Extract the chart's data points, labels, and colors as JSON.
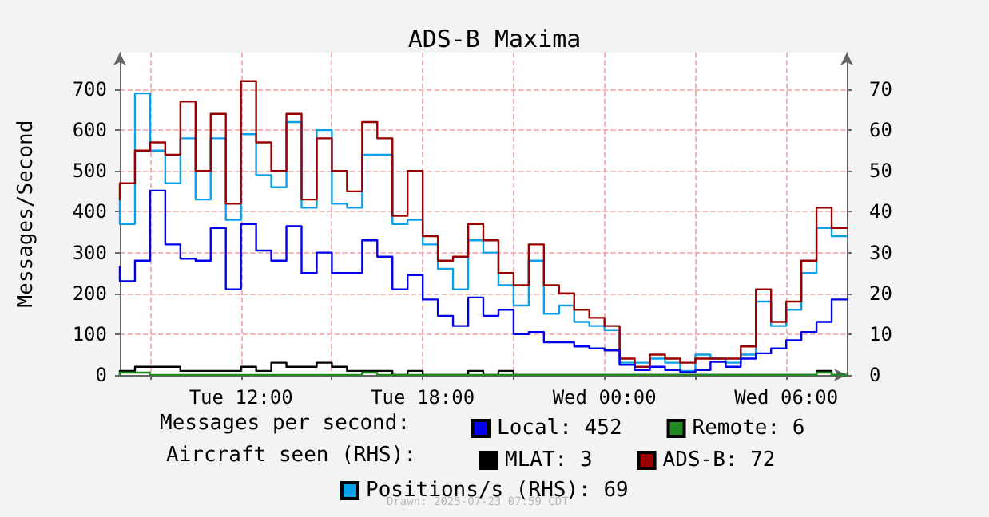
{
  "chart_data": {
    "type": "step",
    "title": "ADS-B Maxima",
    "ylabel": "Messages/Second",
    "annotations": [
      "Messages per second:",
      "Aircraft seen (RHS):",
      "Drawn: 2025-07-23 07:59 CDT"
    ],
    "x": [
      "2025-07-22T08:00",
      "2025-07-22T08:30",
      "2025-07-22T09:00",
      "2025-07-22T09:30",
      "2025-07-22T10:00",
      "2025-07-22T10:30",
      "2025-07-22T11:00",
      "2025-07-22T11:30",
      "2025-07-22T12:00",
      "2025-07-22T12:30",
      "2025-07-22T13:00",
      "2025-07-22T13:30",
      "2025-07-22T14:00",
      "2025-07-22T14:30",
      "2025-07-22T15:00",
      "2025-07-22T15:30",
      "2025-07-22T16:00",
      "2025-07-22T16:30",
      "2025-07-22T17:00",
      "2025-07-22T17:30",
      "2025-07-22T18:00",
      "2025-07-22T18:30",
      "2025-07-22T19:00",
      "2025-07-22T19:30",
      "2025-07-22T20:00",
      "2025-07-22T20:30",
      "2025-07-22T21:00",
      "2025-07-22T21:30",
      "2025-07-22T22:00",
      "2025-07-22T22:30",
      "2025-07-22T23:00",
      "2025-07-22T23:30",
      "2025-07-23T00:00",
      "2025-07-23T00:30",
      "2025-07-23T01:00",
      "2025-07-23T01:30",
      "2025-07-23T02:00",
      "2025-07-23T02:30",
      "2025-07-23T03:00",
      "2025-07-23T03:30",
      "2025-07-23T04:00",
      "2025-07-23T04:30",
      "2025-07-23T05:00",
      "2025-07-23T05:30",
      "2025-07-23T06:00",
      "2025-07-23T06:30",
      "2025-07-23T07:00",
      "2025-07-23T07:30",
      "2025-07-23T08:00"
    ],
    "xlim": [
      "2025-07-22T08:00",
      "2025-07-23T08:00"
    ],
    "xticks": [
      {
        "value": "2025-07-22T09:00",
        "label": null
      },
      {
        "value": "2025-07-22T12:00",
        "label": "Tue 12:00"
      },
      {
        "value": "2025-07-22T15:00",
        "label": null
      },
      {
        "value": "2025-07-22T18:00",
        "label": "Tue 18:00"
      },
      {
        "value": "2025-07-22T21:00",
        "label": null
      },
      {
        "value": "2025-07-23T00:00",
        "label": "Wed 00:00"
      },
      {
        "value": "2025-07-23T03:00",
        "label": null
      },
      {
        "value": "2025-07-23T06:00",
        "label": "Wed 06:00"
      }
    ],
    "ylim": [
      0,
      790
    ],
    "yticks": [
      0,
      100,
      200,
      300,
      400,
      500,
      600,
      700
    ],
    "y2lim": [
      0,
      79
    ],
    "y2ticks": [
      0,
      10,
      20,
      30,
      40,
      50,
      60,
      70
    ],
    "series": [
      {
        "name": "Local: 452",
        "color": "#0000ee",
        "values": [
          265,
          230,
          280,
          452,
          320,
          285,
          280,
          360,
          210,
          370,
          305,
          280,
          365,
          250,
          300,
          250,
          250,
          330,
          290,
          210,
          245,
          185,
          145,
          120,
          190,
          145,
          160,
          100,
          105,
          80,
          80,
          70,
          65,
          60,
          25,
          12,
          20,
          12,
          7,
          12,
          32,
          20,
          40,
          53,
          65,
          85,
          105,
          130,
          185
        ]
      },
      {
        "name": "Remote: 6",
        "color": "#228822",
        "values": [
          0,
          6,
          6,
          0,
          0,
          0,
          0,
          0,
          0,
          0,
          0,
          0,
          0,
          0,
          0,
          0,
          0,
          6,
          0,
          0,
          0,
          0,
          0,
          0,
          0,
          0,
          0,
          0,
          0,
          0,
          0,
          0,
          0,
          0,
          0,
          0,
          0,
          0,
          0,
          0,
          0,
          0,
          0,
          0,
          0,
          0,
          0,
          6,
          0
        ]
      },
      {
        "name": "MLAT: 3",
        "color": "#000000",
        "axis": "y2",
        "values": [
          0,
          1,
          2,
          2,
          2,
          1,
          1,
          1,
          1,
          2,
          1,
          3,
          2,
          2,
          3,
          2,
          1,
          1,
          1,
          0,
          1,
          0,
          0,
          0,
          1,
          0,
          1,
          0,
          0,
          0,
          0,
          0,
          0,
          0,
          0,
          0,
          0,
          0,
          0,
          0,
          0,
          0,
          0,
          0,
          0,
          0,
          0,
          1,
          0
        ]
      },
      {
        "name": "ADS-B: 72",
        "color": "#990000",
        "axis": "y2",
        "values": [
          43,
          47,
          55,
          57,
          54,
          67,
          50,
          64,
          42,
          72,
          57,
          50,
          64,
          43,
          58,
          50,
          45,
          62,
          58,
          39,
          50,
          34,
          28,
          29,
          37,
          33,
          25,
          22,
          32,
          22,
          20,
          16,
          14,
          12,
          4,
          2,
          5,
          4,
          3,
          4,
          4,
          4,
          7,
          21,
          13,
          18,
          28,
          41,
          36
        ]
      },
      {
        "name": "Positions/s (RHS): 69",
        "color": "#0ca0e8",
        "axis": "y2",
        "values": [
          43,
          37,
          69,
          55,
          47,
          58,
          43,
          58,
          38,
          59,
          49,
          46,
          62,
          41,
          60,
          42,
          41,
          54,
          54,
          37,
          38,
          32,
          26,
          21,
          33,
          30,
          22,
          17,
          28,
          15,
          17,
          13,
          12,
          11,
          3,
          3,
          4,
          3,
          1,
          5,
          4,
          3,
          5,
          18,
          12,
          16,
          25,
          36,
          34
        ]
      }
    ],
    "grid": true,
    "legend": "bottom",
    "marker": "none",
    "line_style": "solid"
  }
}
